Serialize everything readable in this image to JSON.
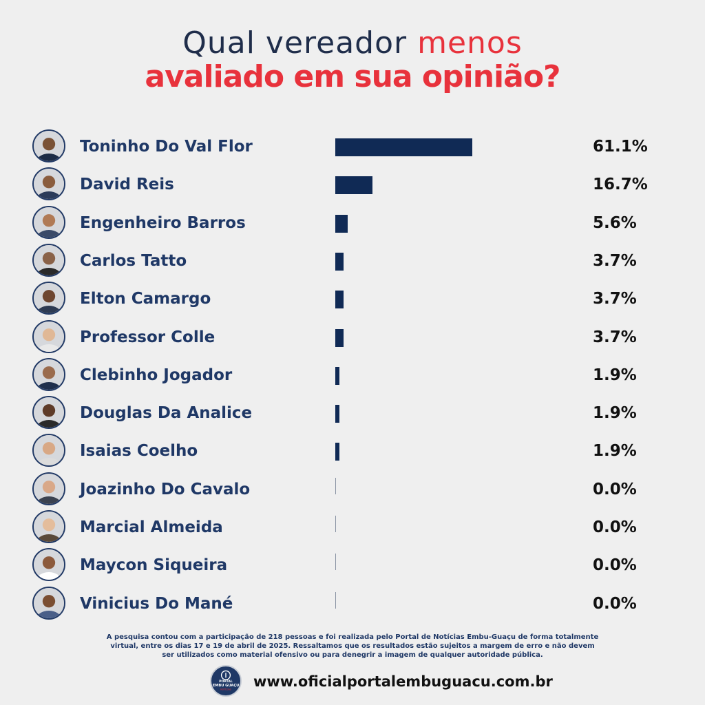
{
  "title": {
    "line1_prefix": "Qual vereador ",
    "line1_accent": "menos",
    "line2": "avaliado em sua opinião?"
  },
  "colors": {
    "bar": "#102a55",
    "name": "#1f3866",
    "accent": "#e8323c",
    "background": "#efefef"
  },
  "chart_data": {
    "type": "bar",
    "orientation": "horizontal",
    "title": "Qual vereador menos avaliado em sua opinião?",
    "categories": [
      "Toninho Do Val Flor",
      "David Reis",
      "Engenheiro Barros",
      "Carlos Tatto",
      "Elton Camargo",
      "Professor Colle",
      "Clebinho Jogador",
      "Douglas Da Analice",
      "Isaias Coelho",
      "Joazinho Do Cavalo",
      "Marcial Almeida",
      "Maycon Siqueira",
      "Vinicius Do Mané"
    ],
    "values": [
      61.1,
      16.7,
      5.6,
      3.7,
      3.7,
      3.7,
      1.9,
      1.9,
      1.9,
      0.0,
      0.0,
      0.0,
      0.0
    ],
    "value_labels": [
      "61.1%",
      "16.7%",
      "5.6%",
      "3.7%",
      "3.7%",
      "3.7%",
      "1.9%",
      "1.9%",
      "1.9%",
      "0.0%",
      "0.0%",
      "0.0%",
      "0.0%"
    ],
    "xlim": [
      0,
      100
    ],
    "grid": false,
    "legend": "none"
  },
  "footnote": "A pesquisa contou com a participação de 218 pessoas e foi realizada pelo Portal de Notícias Embu-Guaçu de forma totalmente virtual, entre os dias 17 e 19 de abril de 2025. Ressaltamos que os resultados estão sujeitos a margem de erro e não devem ser utilizados como material ofensivo ou para denegrir a imagem de qualquer autoridade pública.",
  "logo": {
    "top": "PORTAL",
    "middle": "EMBU GUAÇU",
    "bottom": "NOTÍCIAS"
  },
  "website": "www.oficialportalembuguacu.com.br"
}
